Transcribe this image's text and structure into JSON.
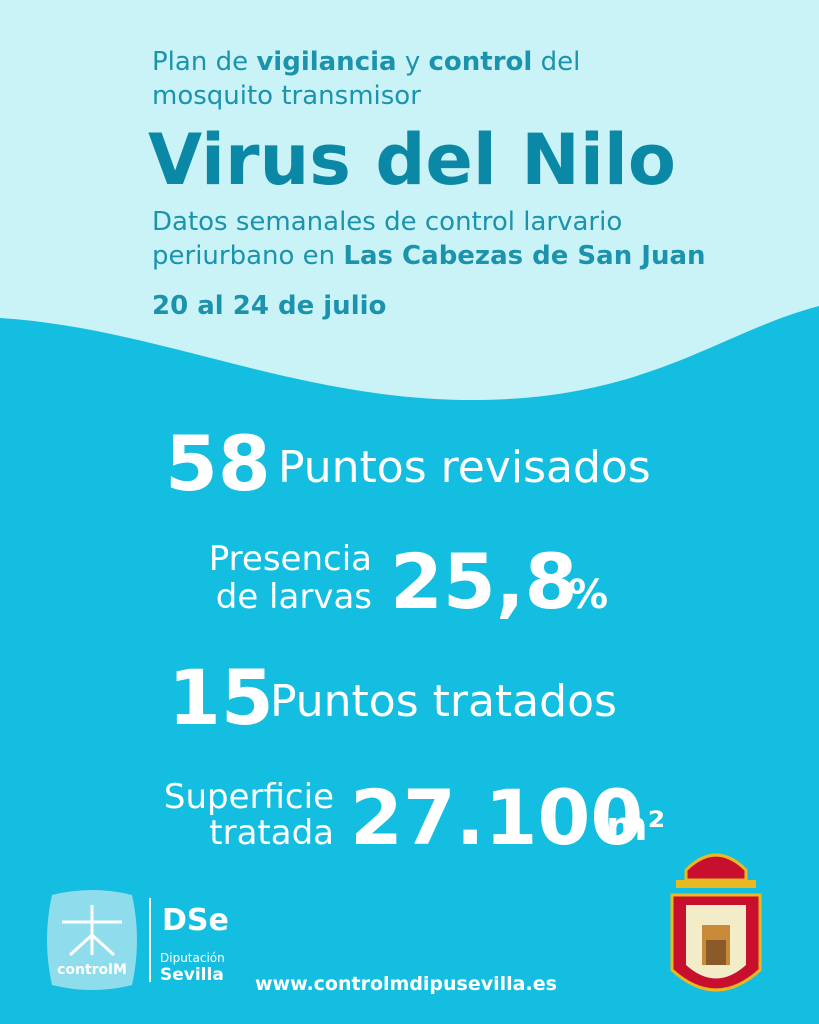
{
  "header": {
    "line1": [
      "Plan de ",
      "vigilancia",
      " y ",
      "control",
      " del"
    ],
    "line2": "mosquito transmisor",
    "title": "Virus del Nilo",
    "subtitle1": "Datos semanales de control larvario",
    "subtitle2": [
      "periurbano en ",
      "Las Cabezas de San Juan"
    ],
    "date": "20 al 24 de julio"
  },
  "stats": [
    {
      "value": "58",
      "label": "Puntos revisados"
    },
    {
      "label": [
        "Presencia",
        "de larvas"
      ],
      "value": "25,8",
      "unit": "%"
    },
    {
      "value": "15",
      "label": "Puntos tratados"
    },
    {
      "label": [
        "Superficie",
        "tratada"
      ],
      "value": "27.100",
      "unit": "m²"
    }
  ],
  "footer": {
    "logo": "controlM",
    "org": [
      "Diputación",
      "Sevilla"
    ],
    "url": "www.controlmdipusevilla.es"
  }
}
